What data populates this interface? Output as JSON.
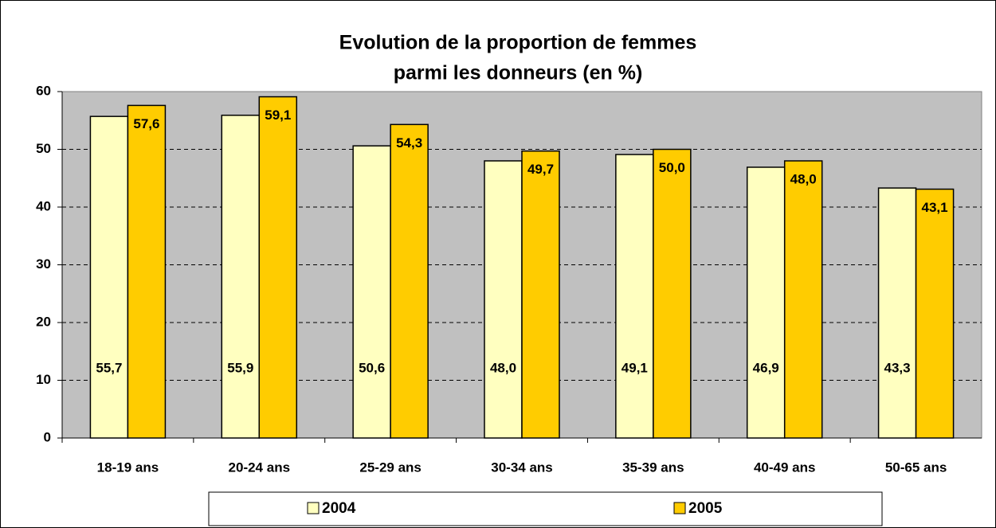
{
  "chart_data": {
    "type": "bar",
    "title": [
      "Evolution de la proportion de femmes",
      "parmi les donneurs (en %)"
    ],
    "categories": [
      "18-19 ans",
      "20-24 ans",
      "25-29 ans",
      "30-34 ans",
      "35-39 ans",
      "40-49 ans",
      "50-65 ans"
    ],
    "series": [
      {
        "name": "2004",
        "color": "#ffffc0",
        "values": [
          55.7,
          55.9,
          50.6,
          48.0,
          49.1,
          46.9,
          43.3
        ],
        "value_labels": [
          "55,7",
          "55,9",
          "50,6",
          "48,0",
          "49,1",
          "46,9",
          "43,3"
        ]
      },
      {
        "name": "2005",
        "color": "#ffcc00",
        "values": [
          57.6,
          59.1,
          54.3,
          49.7,
          50.0,
          48.0,
          43.1
        ],
        "value_labels": [
          "57,6",
          "59,1",
          "54,3",
          "49,7",
          "50,0",
          "48,0",
          "43,1"
        ]
      }
    ],
    "ylim": [
      0,
      60
    ],
    "yticks": [
      0,
      10,
      20,
      30,
      40,
      50,
      60
    ],
    "grid": true,
    "legend": "bottom"
  }
}
